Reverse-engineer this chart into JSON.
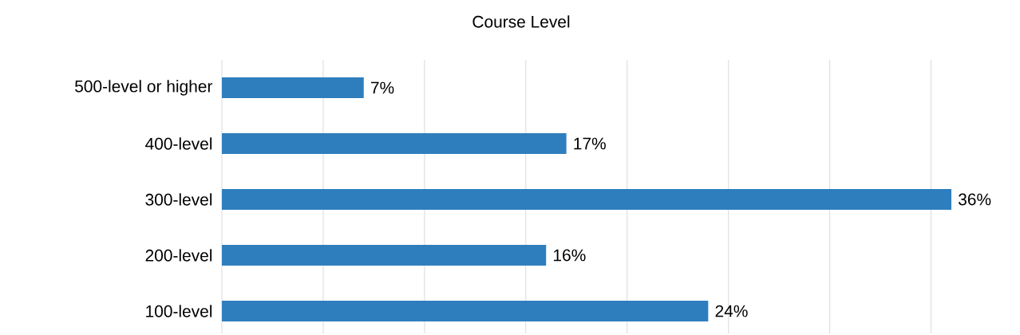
{
  "chart_data": {
    "type": "bar",
    "orientation": "horizontal",
    "title": "Course Level",
    "categories": [
      "500-level or higher",
      "400-level",
      "300-level",
      "200-level",
      "100-level"
    ],
    "values": [
      7,
      17,
      36,
      16,
      24
    ],
    "value_labels": [
      "7%",
      "17%",
      "36%",
      "16%",
      "24%"
    ],
    "color": "#2e7ebe",
    "xlim": [
      0,
      36
    ],
    "xticks": [
      {
        "value": 0,
        "label": null
      },
      {
        "value": 5,
        "label": null
      },
      {
        "value": 10,
        "label": null
      },
      {
        "value": 15,
        "label": null
      },
      {
        "value": 20,
        "label": null
      },
      {
        "value": 25,
        "label": null
      },
      {
        "value": 30,
        "label": null
      },
      {
        "value": 35,
        "label": null
      }
    ],
    "grid": "x",
    "tick_labels": "y"
  }
}
